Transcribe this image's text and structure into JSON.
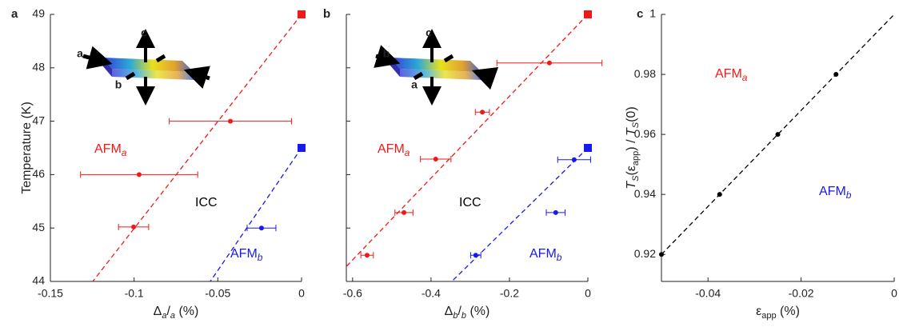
{
  "chart_data": [
    {
      "type": "scatter",
      "panel_label": "a",
      "xlabel": [
        "Δ",
        "a",
        "/",
        "a",
        " (%)"
      ],
      "ylabel": [
        "Temperature (K)"
      ],
      "xlim": [
        -0.15,
        0
      ],
      "ylim": [
        44,
        49
      ],
      "xticks": [
        -0.15,
        -0.1,
        -0.05,
        0
      ],
      "yticks": [
        44,
        45,
        46,
        47,
        48,
        49
      ],
      "ytick_labels": true,
      "inset_labels": [
        "a",
        "b",
        "c"
      ],
      "series": [
        {
          "color": "#f01818",
          "marker": "circle",
          "x": [
            -0.0425,
            -0.097,
            -0.1003
          ],
          "xerr": [
            0.0365,
            0.035,
            0.009
          ],
          "values": [
            47.0,
            46.0,
            45.02
          ]
        },
        {
          "color": "#1818f0",
          "marker": "circle",
          "x": [
            -0.0239
          ],
          "xerr": [
            0.0086
          ],
          "values": [
            45.0
          ]
        },
        {
          "color": "#f01818",
          "marker": "square",
          "x": [
            0
          ],
          "values": [
            49
          ]
        },
        {
          "color": "#1818f0",
          "marker": "square",
          "x": [
            0
          ],
          "values": [
            46.5
          ]
        }
      ],
      "lines": [
        {
          "color": "#f01818",
          "x": [
            0,
            -0.1247
          ],
          "values": [
            49,
            44
          ]
        },
        {
          "color": "#1818f0",
          "x": [
            0,
            -0.0545
          ],
          "values": [
            46.5,
            44
          ]
        }
      ],
      "annotations": [
        {
          "text": [
            "AFM",
            "a"
          ],
          "color": "#f01818"
        },
        {
          "text": [
            "ICC"
          ],
          "color": "#000000"
        },
        {
          "text": [
            "AFM",
            "b"
          ],
          "color": "#1818f0"
        }
      ]
    },
    {
      "type": "scatter",
      "panel_label": "b",
      "xlabel": [
        "Δ",
        "b",
        "/",
        "b",
        " (%)"
      ],
      "ylabel": [],
      "xlim": [
        -0.616,
        0
      ],
      "ylim": [
        44,
        49
      ],
      "xticks": [
        -0.6,
        -0.4,
        -0.2,
        0
      ],
      "yticks": [
        44,
        45,
        46,
        47,
        48,
        49
      ],
      "ytick_labels": false,
      "inset_labels": [
        "b",
        "a",
        "c"
      ],
      "series": [
        {
          "color": "#f01818",
          "marker": "circle",
          "x": [
            -0.098,
            -0.269,
            -0.388,
            -0.469,
            -0.563
          ],
          "xerr": [
            0.134,
            0.018,
            0.039,
            0.023,
            0.016
          ],
          "values": [
            48.09,
            47.17,
            46.29,
            45.29,
            44.49
          ]
        },
        {
          "color": "#1818f0",
          "marker": "circle",
          "x": [
            -0.035,
            -0.082,
            -0.286
          ],
          "xerr": [
            0.042,
            0.024,
            0.013
          ],
          "values": [
            46.28,
            45.29,
            44.49
          ]
        },
        {
          "color": "#f01818",
          "marker": "square",
          "x": [
            0
          ],
          "values": [
            49
          ]
        },
        {
          "color": "#1818f0",
          "marker": "square",
          "x": [
            0
          ],
          "values": [
            46.5
          ]
        }
      ],
      "lines": [
        {
          "color": "#f01818",
          "x": [
            0,
            -0.616
          ],
          "values": [
            49,
            44.28
          ]
        },
        {
          "color": "#1818f0",
          "x": [
            0,
            -0.347
          ],
          "values": [
            46.5,
            44
          ]
        }
      ],
      "annotations": [
        {
          "text": [
            "AFM",
            "a"
          ],
          "color": "#f01818"
        },
        {
          "text": [
            "ICC"
          ],
          "color": "#000000"
        },
        {
          "text": [
            "AFM",
            "b"
          ],
          "color": "#1818f0"
        }
      ]
    },
    {
      "type": "scatter",
      "panel_label": "c",
      "xlabel": [
        "ε",
        "app",
        " (%)"
      ],
      "ylabel": [
        "T",
        "S",
        "(ε",
        "app",
        ") / ",
        "T",
        "S",
        "(0)"
      ],
      "xlim": [
        -0.05,
        0
      ],
      "ylim": [
        0.911,
        1
      ],
      "xticks": [
        -0.04,
        -0.02,
        0
      ],
      "yticks": [
        0.92,
        0.94,
        0.96,
        0.98,
        1
      ],
      "ytick_labels": true,
      "inset_labels": [],
      "series": [
        {
          "color": "#000000",
          "marker": "circle",
          "x": [
            -0.05,
            -0.0375,
            -0.025,
            -0.0125
          ],
          "values": [
            0.92,
            0.94,
            0.96,
            0.98
          ]
        }
      ],
      "lines": [
        {
          "color": "#000000",
          "x": [
            -0.05,
            0
          ],
          "values": [
            0.92,
            1
          ]
        }
      ],
      "annotations": [
        {
          "text": [
            "AFM",
            "a"
          ],
          "color": "#f01818"
        },
        {
          "text": [
            "AFM",
            "b"
          ],
          "color": "#1818f0"
        }
      ]
    }
  ]
}
